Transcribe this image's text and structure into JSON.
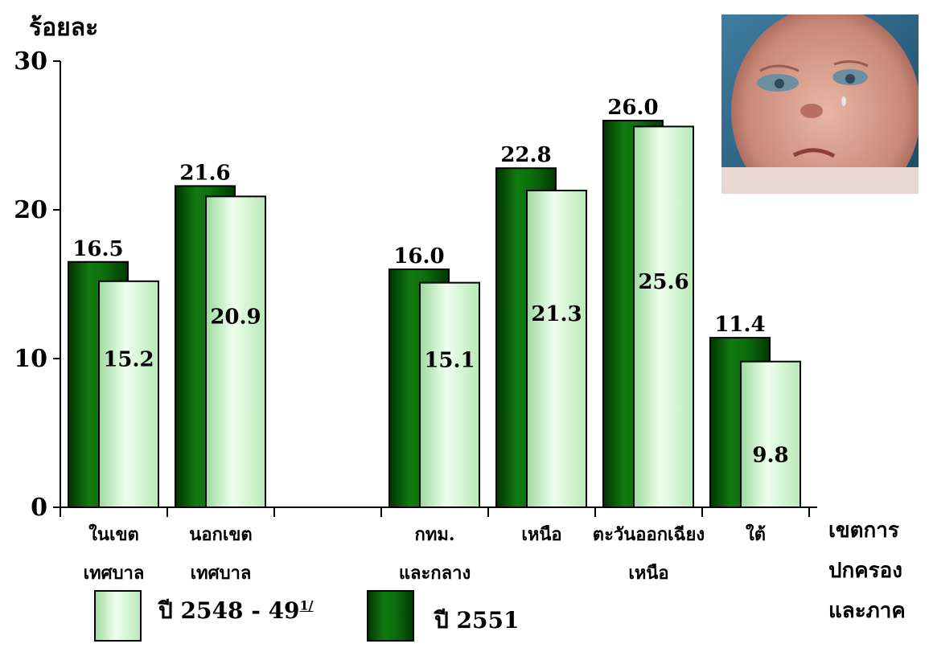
{
  "chart_data": {
    "type": "bar",
    "ylabel": "ร้อยละ",
    "xlabel_lines": [
      "เขตการ",
      "ปกครอง",
      "และภาค"
    ],
    "ylim": [
      0,
      30
    ],
    "yticks": [
      "0",
      "10",
      "20",
      "30"
    ],
    "categories": [
      [
        "ในเขต",
        "เทศบาล"
      ],
      [
        "นอกเขต",
        "เทศบาล"
      ],
      [
        "",
        ""
      ],
      [
        "กทม.",
        "และกลาง"
      ],
      [
        "เหนือ",
        ""
      ],
      [
        "ตะวันออกเฉียง",
        "เหนือ"
      ],
      [
        "ใต้",
        ""
      ]
    ],
    "series": [
      {
        "name": "ปี 2551",
        "color": "#006600",
        "values": [
          16.5,
          21.6,
          null,
          16.0,
          22.8,
          26.0,
          11.4
        ],
        "labels": [
          "16.5",
          "21.6",
          "",
          "16.0",
          "22.8",
          "26.0",
          "11.4"
        ]
      },
      {
        "name": "ปี 2548 - 49",
        "name_sup": "1/",
        "color": "#ccffcc",
        "values": [
          15.2,
          20.9,
          null,
          15.1,
          21.3,
          25.6,
          9.8
        ],
        "labels": [
          "15.2",
          "20.9",
          "",
          "15.1",
          "21.3",
          "25.6",
          "9.8"
        ]
      }
    ],
    "grid": false,
    "legend_position": "bottom"
  },
  "legend": {
    "light_label": "ปี 2548 - 49",
    "light_sup": "1/",
    "dark_label": "ปี 2551"
  },
  "photo": {
    "icon": "crying-baby-photo"
  }
}
